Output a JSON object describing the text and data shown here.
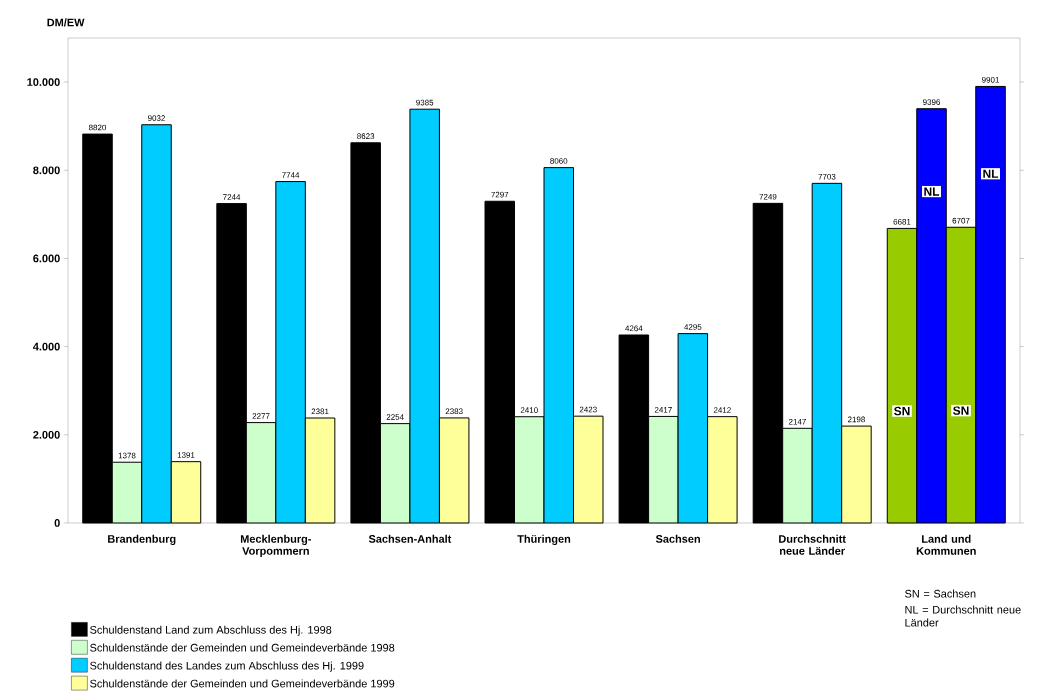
{
  "chart_data": {
    "type": "bar",
    "ylabel": "DM/EW",
    "categories": [
      "Brandenburg",
      "Mecklenburg-Vorpommern",
      "Sachsen-Anhalt",
      "Thüringen",
      "Sachsen",
      "Durchschnitt neue Länder",
      "Land und Kommunen"
    ],
    "series": [
      {
        "name": "Schuldenstand Land zum Abschluss des  Hj. 1998",
        "color": "#000000",
        "colors": [
          "#000000",
          "#000000",
          "#000000",
          "#000000",
          "#000000",
          "#000000",
          "#99cc00"
        ],
        "values": [
          8820,
          7244,
          8623,
          7297,
          4264,
          7249,
          6681
        ]
      },
      {
        "name": "Schuldenstände  der Gemeinden und Gemeindeverbände 1998",
        "color": "#ccffcc",
        "colors": [
          "#ccffcc",
          "#ccffcc",
          "#ccffcc",
          "#ccffcc",
          "#ccffcc",
          "#ccffcc",
          "#0000ff"
        ],
        "values": [
          1378,
          2277,
          2254,
          2410,
          2417,
          2147,
          9396
        ]
      },
      {
        "name": "Schuldenstand des Landes zum Abschluss des  Hj. 1999",
        "color": "#00ccff",
        "colors": [
          "#00ccff",
          "#00ccff",
          "#00ccff",
          "#00ccff",
          "#00ccff",
          "#00ccff",
          "#99cc00"
        ],
        "values": [
          9032,
          7744,
          9385,
          8060,
          4295,
          7703,
          6707
        ]
      },
      {
        "name": "Schuldenstände  der Gemeinden und Gemeindeverbände 1999",
        "color": "#ffff99",
        "colors": [
          "#ffff99",
          "#ffff99",
          "#ffff99",
          "#ffff99",
          "#ffff99",
          "#ffff99",
          "#0000ff"
        ],
        "values": [
          1391,
          2381,
          2383,
          2423,
          2412,
          2198,
          9901
        ]
      }
    ],
    "ylim": [
      0,
      11000
    ],
    "yticks": [
      0,
      {
        "value": 2000,
        "label": "2.000"
      },
      {
        "value": 4000,
        "label": "4.000"
      },
      {
        "value": 6000,
        "label": "6.000"
      },
      {
        "value": 8000,
        "label": "8.000"
      },
      {
        "value": 10000,
        "label": "10.000"
      }
    ],
    "data_labels": true,
    "legend": "bottom",
    "annotations": [
      "SN",
      "NL",
      "SN",
      "NL",
      "SN  =  Sachsen",
      "NL  =  Durchschnitt neue Länder"
    ]
  }
}
